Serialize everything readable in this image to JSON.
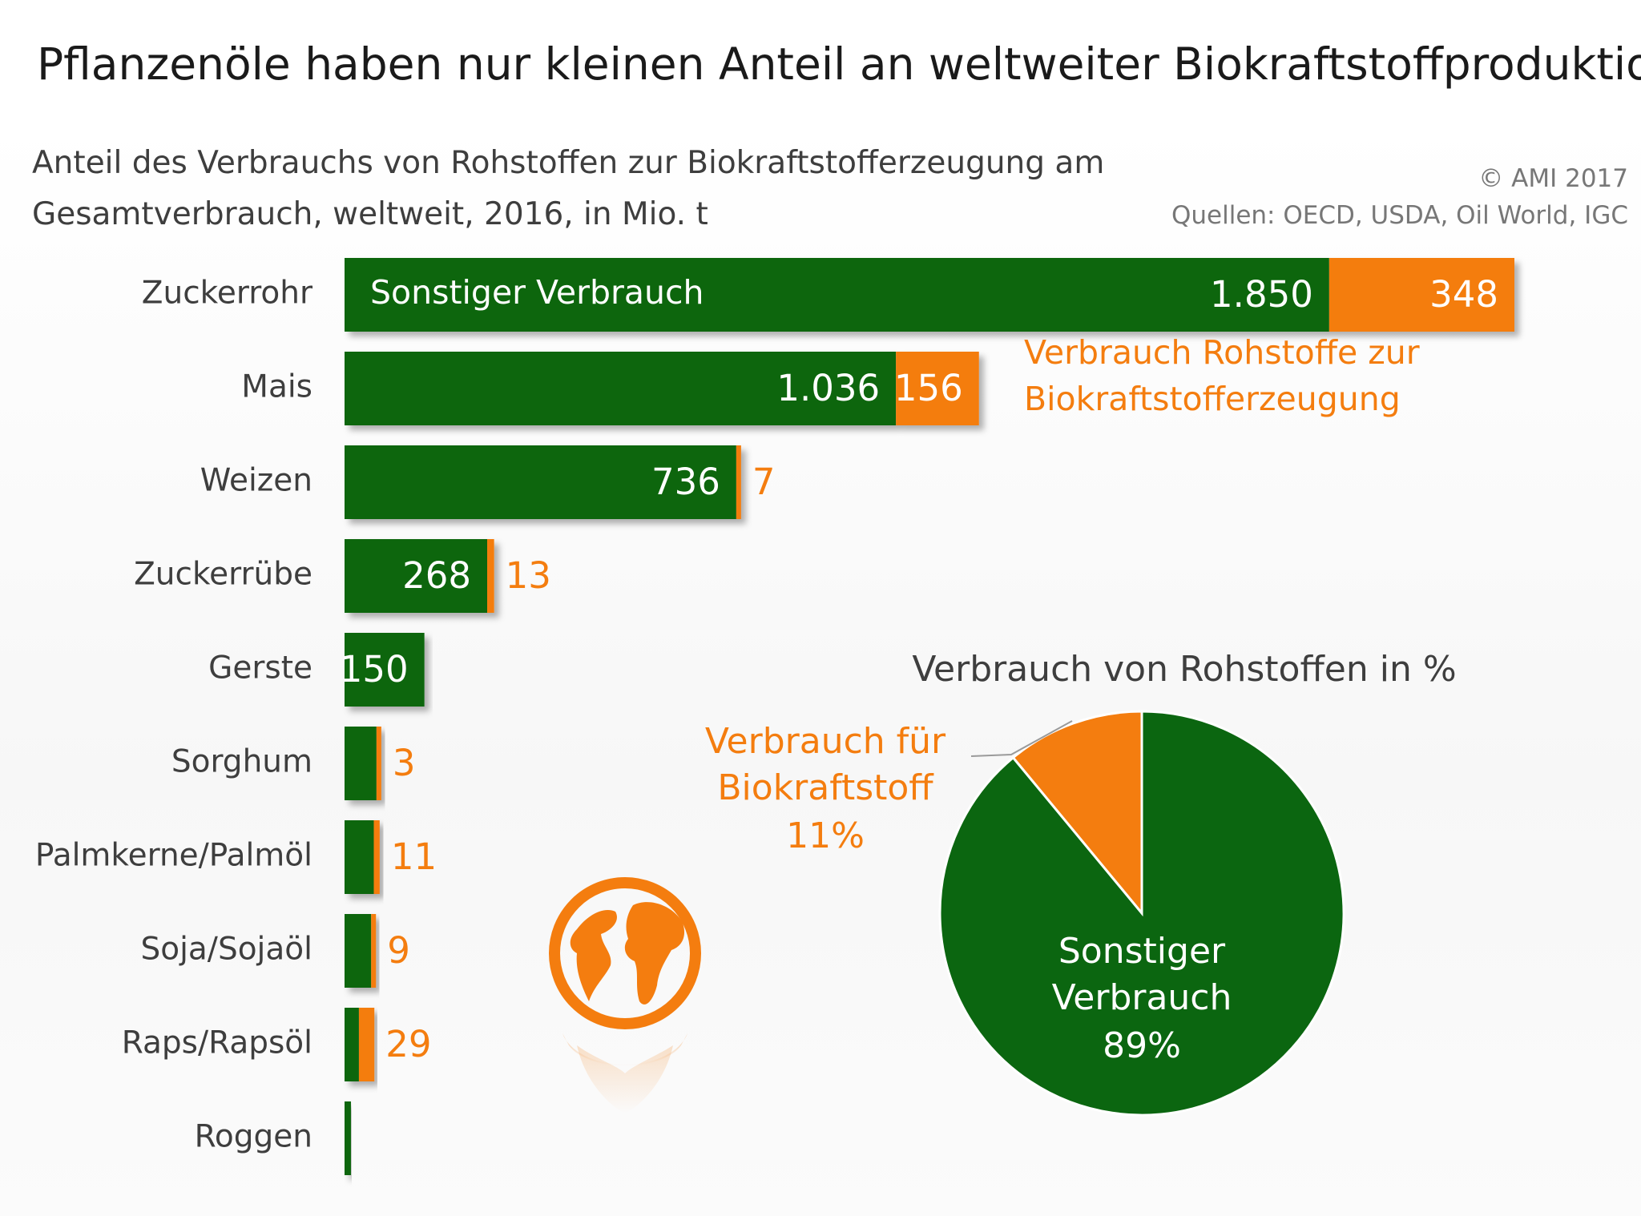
{
  "header": {
    "title": "Pflanzenöle haben nur kleinen Anteil an weltweiter Biokraftstoffproduktion",
    "subtitle": "Anteil des Verbrauchs von Rohstoffen zur Biokraftstofferzeugung am Gesamtverbrauch, weltweit, 2016, in Mio. t",
    "copyright": "© AMI 2017",
    "sources": "Quellen: OECD, USDA, Oil World, IGC"
  },
  "colors": {
    "other": "#0b6610",
    "bio": "#f47d0f",
    "text_dark": "#3e3e3e"
  },
  "icons": {
    "globe": "globe-icon"
  },
  "chart_data": [
    {
      "type": "bar",
      "stacked": true,
      "orientation": "horizontal",
      "unit": "Mio. t",
      "categories": [
        "Zuckerrohr",
        "Mais",
        "Weizen",
        "Zuckerrübe",
        "Gerste",
        "Sorghum",
        "Palmkerne/Palmöl",
        "Soja/Sojaöl",
        "Raps/Rapsöl",
        "Roggen"
      ],
      "series": [
        {
          "name": "Sonstiger Verbrauch",
          "color": "#0b6610",
          "values": [
            1850,
            1036,
            736,
            268,
            150,
            60,
            55,
            50,
            27,
            12
          ],
          "labels": [
            "1.850",
            "1.036",
            "736",
            "268",
            "150",
            "",
            "",
            "",
            "",
            ""
          ]
        },
        {
          "name": "Verbrauch Rohstoffe zur Biokraftstofferzeugung",
          "color": "#f47d0f",
          "values": [
            348,
            156,
            7,
            13,
            0,
            3,
            11,
            9,
            29,
            0
          ],
          "labels": [
            "348",
            "156",
            "7",
            "13",
            "",
            "3",
            "11",
            "9",
            "29",
            ""
          ]
        }
      ],
      "xlim": [
        0,
        2200
      ],
      "grid": false
    },
    {
      "type": "pie",
      "title": "Verbrauch von Rohstoffen in %",
      "slices": [
        {
          "label": "Verbrauch für Biokraftstoff",
          "value": 11,
          "value_label": "11%",
          "color": "#f47d0f"
        },
        {
          "label": "Sonstiger Verbrauch",
          "value": 89,
          "value_label": "89%",
          "color": "#0b6610"
        }
      ]
    }
  ]
}
